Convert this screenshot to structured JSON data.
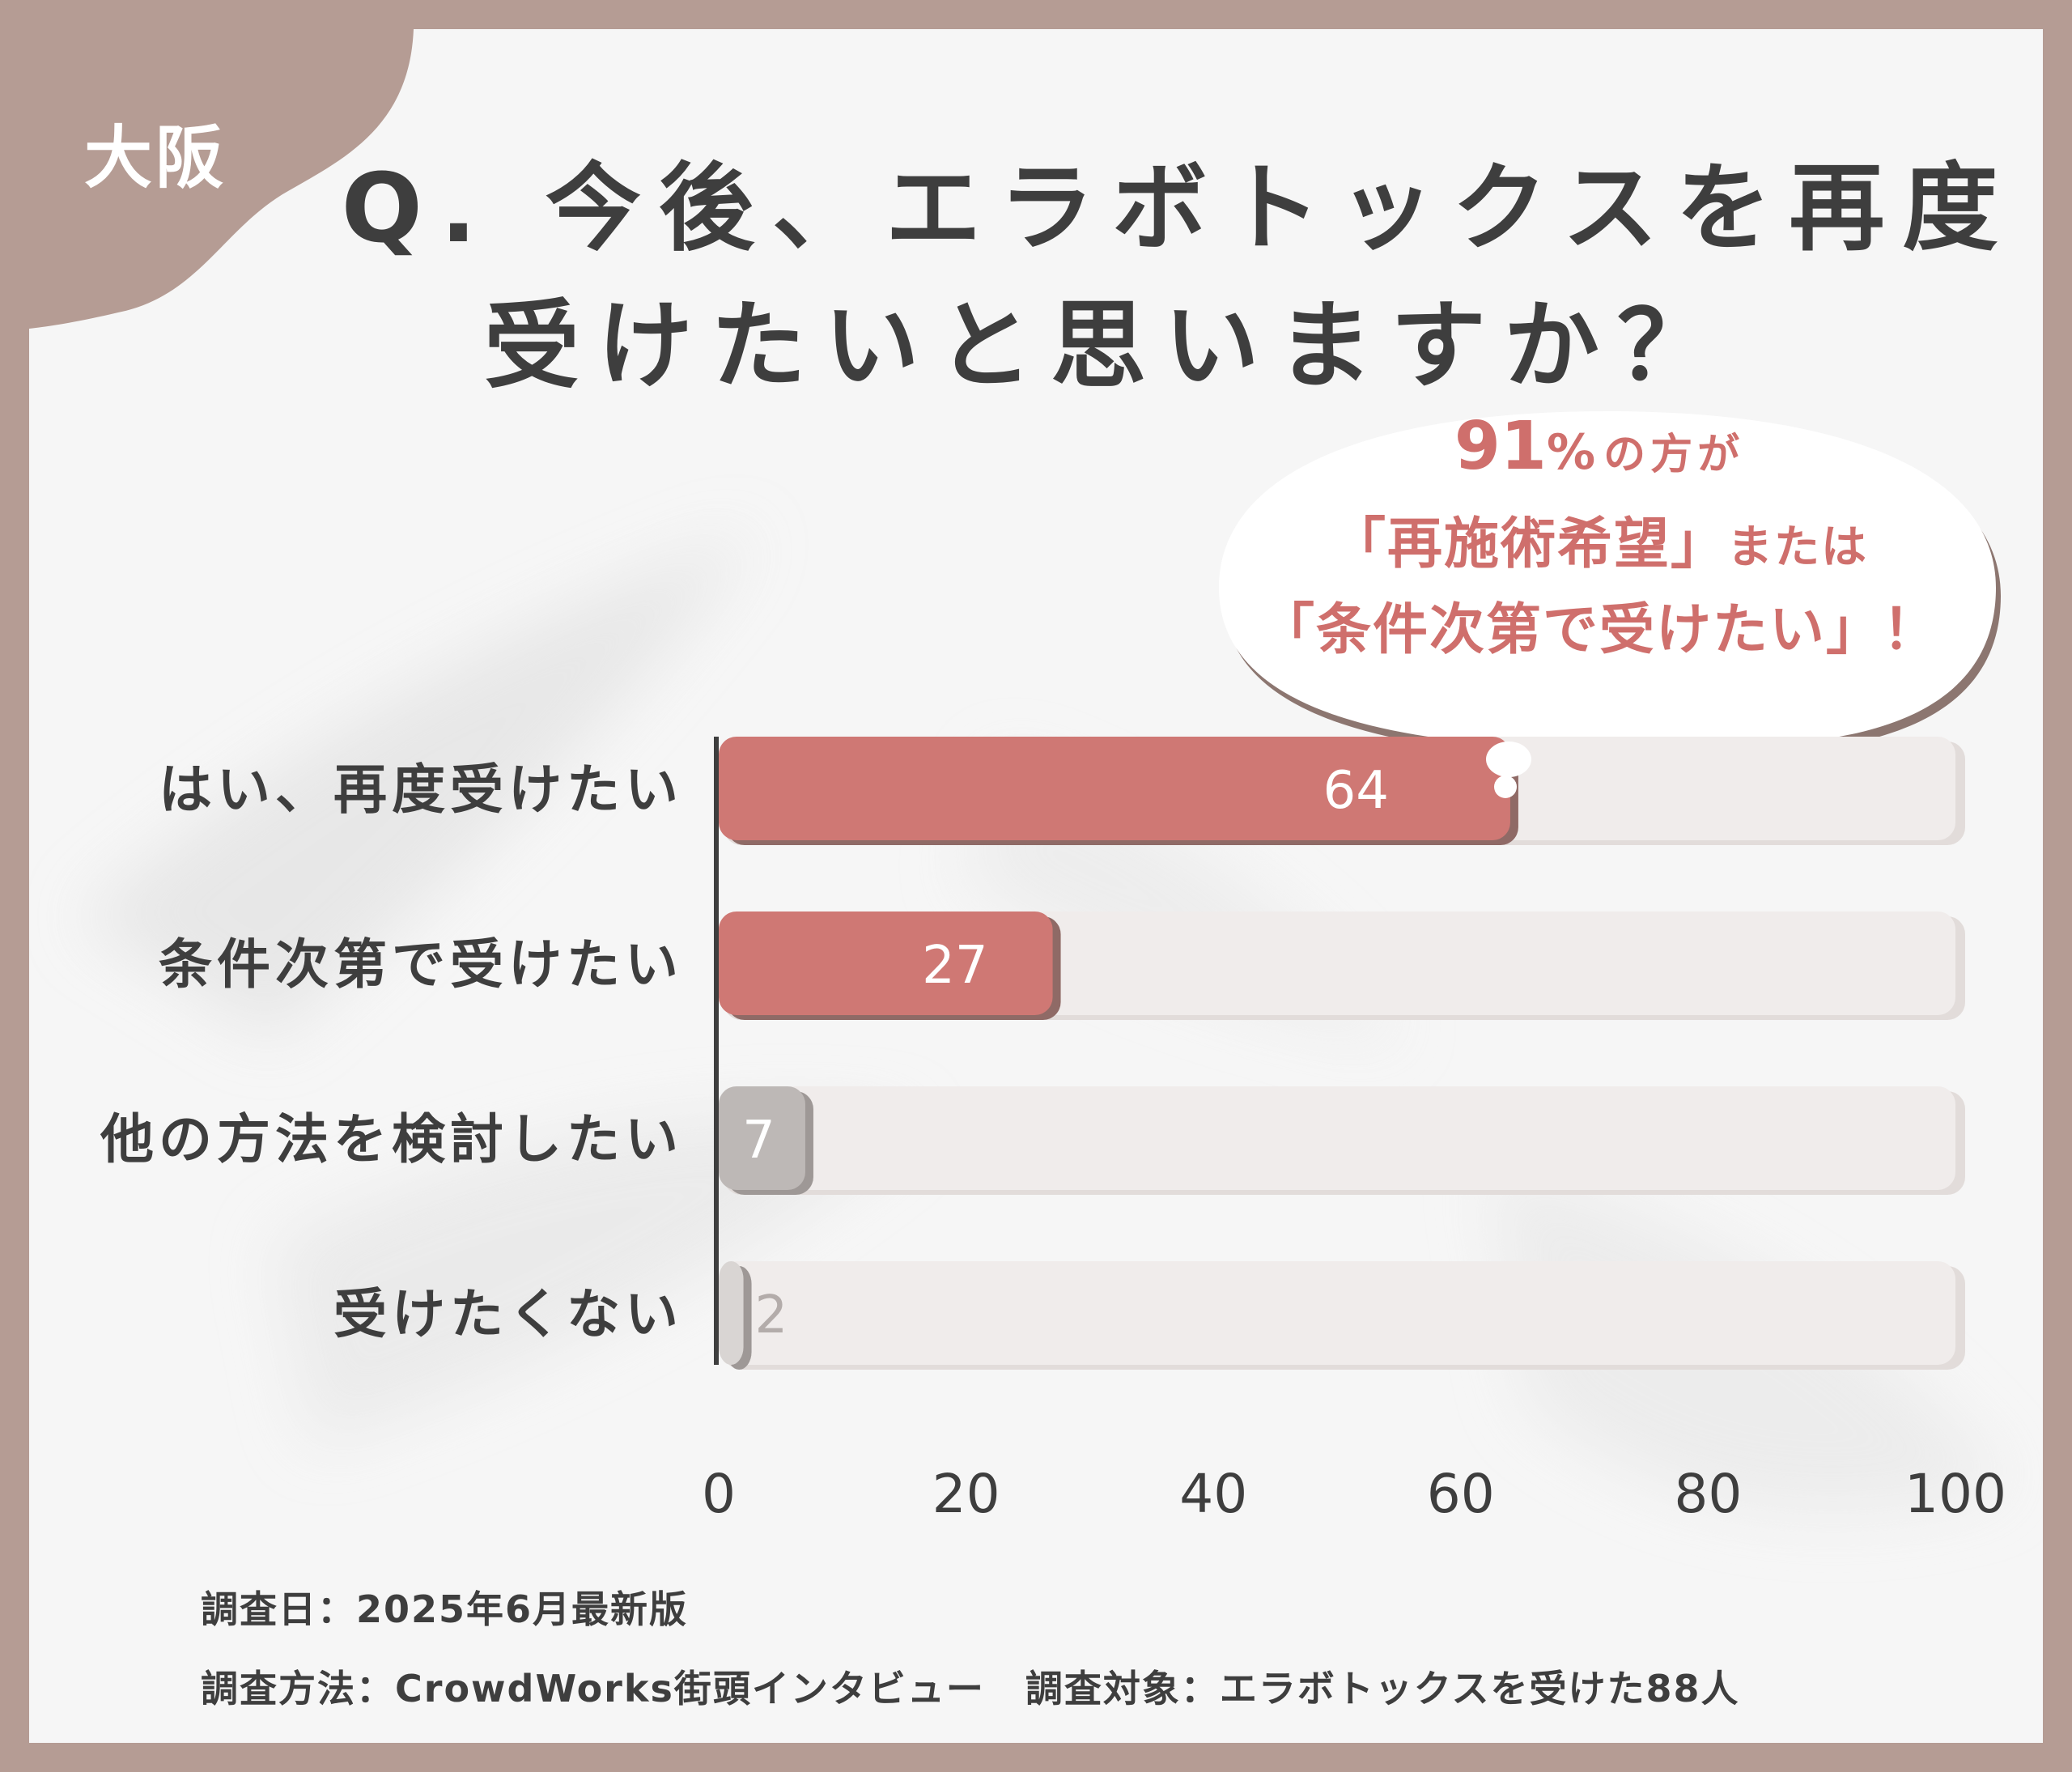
{
  "badge": {
    "region": "大阪"
  },
  "title": {
    "line1": "Q. 今後、エラボトックスを再度",
    "line2": "受けたいと思いますか？"
  },
  "callout": {
    "percent_number": "91",
    "percent_sign": "%",
    "line1_rest": "の方が",
    "line2_quote": "「再施術希望」",
    "line2_rest": "または",
    "line3": "「条件次第で受けたい」！"
  },
  "colors": {
    "frame": "#b59c94",
    "accent_red": "#cf7874",
    "accent_gray": "#bdb8b6",
    "track": "#f0eceb",
    "text": "#3e3e3e"
  },
  "chart_data": {
    "type": "bar",
    "orientation": "horizontal",
    "categories": [
      "はい、再度受けたい",
      "条件次第で受けたい",
      "他の方法を検討したい",
      "受けたくない"
    ],
    "values": [
      64,
      27,
      7,
      2
    ],
    "data_labels": [
      "64",
      "27",
      "7",
      "2"
    ],
    "bar_colors": [
      "#cf7874",
      "#cf7874",
      "#bdb8b6",
      "#d9d5d3"
    ],
    "label_colors": [
      "#ffffff",
      "#ffffff",
      "#ffffff",
      "#b3acaa"
    ],
    "xlim": [
      0,
      100
    ],
    "xticks": [
      "0",
      "20",
      "40",
      "60",
      "80",
      "100"
    ],
    "xtick_values": [
      0,
      20,
      40,
      60,
      80,
      100
    ],
    "grid": false,
    "legend": "none"
  },
  "footer": {
    "date": "調査日：2025年6月最新版",
    "method": "調査方法：CrowdWorks街頭インタビュー",
    "target": "調査対象：エラボトックスを受けた88人"
  }
}
